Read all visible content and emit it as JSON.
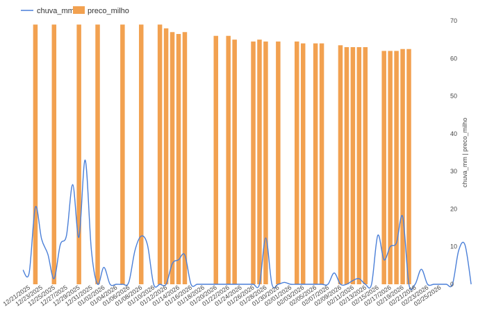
{
  "chart_data": {
    "type": "bar+line",
    "title": "",
    "xlabel": "",
    "ylabel": "chuva_mm | preco_milho",
    "ylim": [
      0,
      70
    ],
    "yticks": [
      0,
      10,
      20,
      30,
      40,
      50,
      60,
      70
    ],
    "grid": false,
    "legend_position": "top-left",
    "x_tick_labels": [
      "12/21/2025",
      "12/23/2025",
      "12/25/2025",
      "12/27/2025",
      "12/29/2025",
      "12/31/2025",
      "01/02/2026",
      "01/04/2026",
      "01/06/2026",
      "01/08/2026",
      "01/10/2026",
      "01/12/2026",
      "01/14/2026",
      "01/16/2026",
      "01/18/2026",
      "01/20/2026",
      "01/22/2026",
      "01/24/2026",
      "01/26/2026",
      "01/28/2026",
      "01/30/2026",
      "02/01/2026",
      "02/03/2026",
      "02/05/2026",
      "02/07/2026",
      "02/09/2026",
      "02/11/2026",
      "02/13/2026",
      "02/15/2026",
      "02/17/2026",
      "02/19/2026",
      "02/21/2026",
      "02/23/2026",
      "02/25/2026"
    ],
    "x_first_date": "2025-12-20",
    "series": [
      {
        "name": "chuva_mm",
        "kind": "line",
        "color": "#4a7fd8",
        "values": [
          3.8,
          3.0,
          20.5,
          12.0,
          8.0,
          1.5,
          10.5,
          13.0,
          26.5,
          12.5,
          33.0,
          9.0,
          0,
          4.5,
          0,
          0,
          0,
          0.5,
          9.0,
          12.8,
          10.5,
          0,
          0,
          0,
          5.5,
          6.5,
          7.8,
          0,
          0,
          0,
          0,
          0,
          0,
          0,
          0,
          0,
          0,
          0,
          0,
          12.3,
          0,
          0,
          0.5,
          0,
          0,
          0,
          0,
          0,
          0,
          0,
          3.0,
          0,
          0,
          1.0,
          1.5,
          0,
          0,
          13.0,
          6.5,
          10.0,
          11.0,
          18.0,
          0,
          0,
          4.0,
          0,
          0,
          0,
          0,
          0,
          9.0,
          10.5,
          0
        ]
      },
      {
        "name": "preco_milho",
        "kind": "bar",
        "color": "#f2a150",
        "values": [
          null,
          null,
          69.0,
          null,
          null,
          69.0,
          null,
          null,
          null,
          69.0,
          null,
          null,
          69.0,
          null,
          null,
          null,
          69.0,
          null,
          null,
          69.0,
          null,
          null,
          69.0,
          68.0,
          67.0,
          66.5,
          67.0,
          null,
          null,
          null,
          null,
          66.0,
          null,
          66.0,
          65.0,
          null,
          null,
          64.5,
          65.0,
          64.5,
          null,
          64.5,
          null,
          null,
          64.5,
          64.0,
          null,
          64.0,
          64.0,
          null,
          null,
          63.5,
          63.0,
          63.0,
          63.0,
          63.0,
          null,
          null,
          62.0,
          62.0,
          62.0,
          62.5,
          62.5,
          null,
          null,
          null,
          null,
          null,
          null,
          null,
          null,
          null,
          null
        ]
      }
    ]
  }
}
